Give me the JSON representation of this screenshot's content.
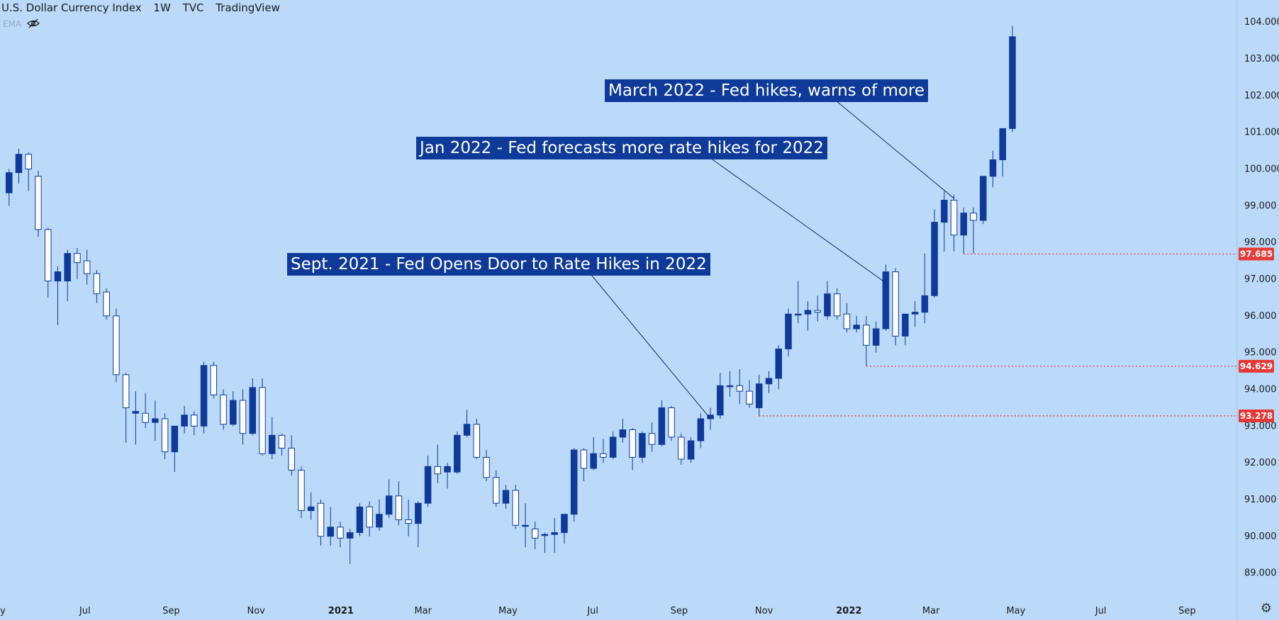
{
  "header": {
    "symbol": "U.S. Dollar Currency Index",
    "interval": "1W",
    "exchange": "TVC",
    "source": "TradingView",
    "indicator": "EMA"
  },
  "annotations": [
    {
      "text": "March 2022 - Fed hikes, warns of more",
      "target_week": "2022-03-14",
      "target_price": 99.2
    },
    {
      "text": "Jan 2022 - Fed forecasts more rate hikes for 2022",
      "target_week": "2022-01-24",
      "target_price": 96.9
    },
    {
      "text": "Sept. 2021 - Fed Opens Door to Rate Hikes in 2022",
      "target_week": "2021-09-20",
      "target_price": 93.2
    }
  ],
  "levels": [
    {
      "price": 97.685,
      "label": "97.685",
      "from_week": "2022-03-21"
    },
    {
      "price": 94.629,
      "label": "94.629",
      "from_week": "2022-01-10"
    },
    {
      "price": 93.278,
      "label": "93.278",
      "from_week": "2021-10-25"
    }
  ],
  "colors": {
    "background": "#bbdafa",
    "up": "#0e3a9a",
    "down": "#ffffff",
    "wick": "#0e3a9a",
    "level": "#e53935",
    "annotation_bg": "#0e3a9a"
  },
  "chart_data": {
    "type": "candlestick",
    "x_axis_labels": [
      {
        "label": "ay",
        "date": "2020-05-01"
      },
      {
        "label": "Jul",
        "date": "2020-07-01"
      },
      {
        "label": "Sep",
        "date": "2020-09-01"
      },
      {
        "label": "Nov",
        "date": "2020-11-01"
      },
      {
        "label": "2021",
        "date": "2021-01-01",
        "bold": true
      },
      {
        "label": "Mar",
        "date": "2021-03-01"
      },
      {
        "label": "May",
        "date": "2021-05-01"
      },
      {
        "label": "Jul",
        "date": "2021-07-01"
      },
      {
        "label": "Sep",
        "date": "2021-09-01"
      },
      {
        "label": "Nov",
        "date": "2021-11-01"
      },
      {
        "label": "2022",
        "date": "2022-01-01",
        "bold": true
      },
      {
        "label": "Mar",
        "date": "2022-03-01"
      },
      {
        "label": "May",
        "date": "2022-05-01"
      },
      {
        "label": "Jul",
        "date": "2022-07-01"
      },
      {
        "label": "Sep",
        "date": "2022-09-01"
      }
    ],
    "y_axis_ticks": [
      "89.000",
      "90.000",
      "91.000",
      "92.000",
      "93.000",
      "94.000",
      "95.000",
      "96.000",
      "97.000",
      "98.000",
      "99.000",
      "100.000",
      "101.000",
      "102.000",
      "103.000",
      "104.000"
    ],
    "ylim": [
      88.3,
      104.6
    ],
    "x_start": "2020-05-01",
    "x_end": "2022-10-07",
    "candles": [
      {
        "t": "2020-05-04",
        "o": 99.35,
        "h": 100.0,
        "l": 99.0,
        "c": 99.9
      },
      {
        "t": "2020-05-11",
        "o": 99.9,
        "h": 100.55,
        "l": 99.6,
        "c": 100.4
      },
      {
        "t": "2020-05-18",
        "o": 100.4,
        "h": 100.45,
        "l": 99.4,
        "c": 100.0
      },
      {
        "t": "2020-05-25",
        "o": 99.8,
        "h": 99.95,
        "l": 98.15,
        "c": 98.35
      },
      {
        "t": "2020-06-01",
        "o": 98.35,
        "h": 98.4,
        "l": 96.5,
        "c": 96.95
      },
      {
        "t": "2020-06-08",
        "o": 96.95,
        "h": 97.35,
        "l": 95.75,
        "c": 97.2
      },
      {
        "t": "2020-06-15",
        "o": 96.95,
        "h": 97.8,
        "l": 96.4,
        "c": 97.7
      },
      {
        "t": "2020-06-22",
        "o": 97.7,
        "h": 97.85,
        "l": 97.0,
        "c": 97.45
      },
      {
        "t": "2020-06-29",
        "o": 97.5,
        "h": 97.8,
        "l": 96.85,
        "c": 97.15
      },
      {
        "t": "2020-07-06",
        "o": 97.15,
        "h": 97.25,
        "l": 96.35,
        "c": 96.6
      },
      {
        "t": "2020-07-13",
        "o": 96.65,
        "h": 96.75,
        "l": 95.9,
        "c": 96.0
      },
      {
        "t": "2020-07-20",
        "o": 96.0,
        "h": 96.2,
        "l": 94.2,
        "c": 94.4
      },
      {
        "t": "2020-07-27",
        "o": 94.4,
        "h": 94.45,
        "l": 92.55,
        "c": 93.5
      },
      {
        "t": "2020-08-03",
        "o": 93.35,
        "h": 93.95,
        "l": 92.5,
        "c": 93.4
      },
      {
        "t": "2020-08-10",
        "o": 93.35,
        "h": 93.9,
        "l": 92.95,
        "c": 93.1
      },
      {
        "t": "2020-08-17",
        "o": 93.1,
        "h": 93.7,
        "l": 92.6,
        "c": 93.2
      },
      {
        "t": "2020-08-24",
        "o": 93.2,
        "h": 93.35,
        "l": 92.1,
        "c": 92.3
      },
      {
        "t": "2020-08-31",
        "o": 92.3,
        "h": 93.0,
        "l": 91.75,
        "c": 93.0
      },
      {
        "t": "2020-09-07",
        "o": 93.0,
        "h": 93.55,
        "l": 92.8,
        "c": 93.3
      },
      {
        "t": "2020-09-14",
        "o": 93.3,
        "h": 93.4,
        "l": 92.75,
        "c": 93.0
      },
      {
        "t": "2020-09-21",
        "o": 93.0,
        "h": 94.75,
        "l": 92.8,
        "c": 94.65
      },
      {
        "t": "2020-09-28",
        "o": 94.65,
        "h": 94.75,
        "l": 93.75,
        "c": 93.85
      },
      {
        "t": "2020-10-05",
        "o": 93.85,
        "h": 94.0,
        "l": 92.9,
        "c": 93.05
      },
      {
        "t": "2020-10-12",
        "o": 93.05,
        "h": 93.95,
        "l": 93.0,
        "c": 93.7
      },
      {
        "t": "2020-10-19",
        "o": 93.7,
        "h": 94.0,
        "l": 92.5,
        "c": 92.8
      },
      {
        "t": "2020-10-26",
        "o": 92.8,
        "h": 94.3,
        "l": 92.75,
        "c": 94.05
      },
      {
        "t": "2020-11-02",
        "o": 94.05,
        "h": 94.3,
        "l": 92.2,
        "c": 92.25
      },
      {
        "t": "2020-11-09",
        "o": 92.25,
        "h": 93.25,
        "l": 92.1,
        "c": 92.75
      },
      {
        "t": "2020-11-16",
        "o": 92.75,
        "h": 92.8,
        "l": 92.2,
        "c": 92.4
      },
      {
        "t": "2020-11-23",
        "o": 92.4,
        "h": 92.75,
        "l": 91.65,
        "c": 91.8
      },
      {
        "t": "2020-11-30",
        "o": 91.8,
        "h": 91.9,
        "l": 90.5,
        "c": 90.7
      },
      {
        "t": "2020-12-07",
        "o": 90.7,
        "h": 91.2,
        "l": 90.45,
        "c": 90.8
      },
      {
        "t": "2020-12-14",
        "o": 90.9,
        "h": 91.0,
        "l": 89.75,
        "c": 90.0
      },
      {
        "t": "2020-12-21",
        "o": 90.0,
        "h": 90.8,
        "l": 89.75,
        "c": 90.25
      },
      {
        "t": "2020-12-28",
        "o": 90.25,
        "h": 90.4,
        "l": 89.7,
        "c": 89.95
      },
      {
        "t": "2021-01-04",
        "o": 89.95,
        "h": 90.2,
        "l": 89.25,
        "c": 90.1
      },
      {
        "t": "2021-01-11",
        "o": 90.1,
        "h": 90.9,
        "l": 90.0,
        "c": 90.8
      },
      {
        "t": "2021-01-18",
        "o": 90.8,
        "h": 90.95,
        "l": 90.0,
        "c": 90.25
      },
      {
        "t": "2021-01-25",
        "o": 90.25,
        "h": 91.0,
        "l": 90.15,
        "c": 90.6
      },
      {
        "t": "2021-02-01",
        "o": 90.6,
        "h": 91.55,
        "l": 90.5,
        "c": 91.1
      },
      {
        "t": "2021-02-08",
        "o": 91.1,
        "h": 91.5,
        "l": 90.3,
        "c": 90.45
      },
      {
        "t": "2021-02-15",
        "o": 90.45,
        "h": 91.0,
        "l": 90.0,
        "c": 90.35
      },
      {
        "t": "2021-02-22",
        "o": 90.35,
        "h": 90.95,
        "l": 89.7,
        "c": 90.9
      },
      {
        "t": "2021-03-01",
        "o": 90.9,
        "h": 92.2,
        "l": 90.8,
        "c": 91.9
      },
      {
        "t": "2021-03-08",
        "o": 91.9,
        "h": 92.5,
        "l": 91.45,
        "c": 91.7
      },
      {
        "t": "2021-03-15",
        "o": 91.75,
        "h": 92.0,
        "l": 91.3,
        "c": 91.9
      },
      {
        "t": "2021-03-22",
        "o": 91.75,
        "h": 92.85,
        "l": 91.7,
        "c": 92.75
      },
      {
        "t": "2021-03-29",
        "o": 92.75,
        "h": 93.45,
        "l": 92.7,
        "c": 93.05
      },
      {
        "t": "2021-04-05",
        "o": 93.05,
        "h": 93.2,
        "l": 92.1,
        "c": 92.15
      },
      {
        "t": "2021-04-12",
        "o": 92.15,
        "h": 92.35,
        "l": 91.5,
        "c": 91.6
      },
      {
        "t": "2021-04-19",
        "o": 91.6,
        "h": 91.8,
        "l": 90.8,
        "c": 90.9
      },
      {
        "t": "2021-04-26",
        "o": 90.9,
        "h": 91.4,
        "l": 90.75,
        "c": 91.25
      },
      {
        "t": "2021-05-03",
        "o": 91.25,
        "h": 91.4,
        "l": 90.2,
        "c": 90.3
      },
      {
        "t": "2021-05-10",
        "o": 90.3,
        "h": 90.9,
        "l": 89.7,
        "c": 90.3
      },
      {
        "t": "2021-05-17",
        "o": 90.2,
        "h": 90.4,
        "l": 89.65,
        "c": 89.95
      },
      {
        "t": "2021-05-24",
        "o": 90.05,
        "h": 90.1,
        "l": 89.55,
        "c": 90.05
      },
      {
        "t": "2021-05-31",
        "o": 90.05,
        "h": 90.5,
        "l": 89.55,
        "c": 90.1
      },
      {
        "t": "2021-06-07",
        "o": 90.1,
        "h": 90.6,
        "l": 89.8,
        "c": 90.6
      },
      {
        "t": "2021-06-14",
        "o": 90.6,
        "h": 92.4,
        "l": 90.4,
        "c": 92.35
      },
      {
        "t": "2021-06-21",
        "o": 92.35,
        "h": 92.4,
        "l": 91.5,
        "c": 91.85
      },
      {
        "t": "2021-06-28",
        "o": 91.85,
        "h": 92.7,
        "l": 91.8,
        "c": 92.25
      },
      {
        "t": "2021-07-05",
        "o": 92.25,
        "h": 92.65,
        "l": 92.0,
        "c": 92.15
      },
      {
        "t": "2021-07-12",
        "o": 92.15,
        "h": 92.85,
        "l": 92.1,
        "c": 92.7
      },
      {
        "t": "2021-07-19",
        "o": 92.7,
        "h": 93.2,
        "l": 92.55,
        "c": 92.9
      },
      {
        "t": "2021-07-26",
        "o": 92.9,
        "h": 92.95,
        "l": 91.8,
        "c": 92.15
      },
      {
        "t": "2021-08-02",
        "o": 92.15,
        "h": 92.85,
        "l": 92.0,
        "c": 92.8
      },
      {
        "t": "2021-08-09",
        "o": 92.8,
        "h": 93.1,
        "l": 92.3,
        "c": 92.5
      },
      {
        "t": "2021-08-16",
        "o": 92.5,
        "h": 93.7,
        "l": 92.45,
        "c": 93.5
      },
      {
        "t": "2021-08-23",
        "o": 93.5,
        "h": 93.55,
        "l": 92.6,
        "c": 92.7
      },
      {
        "t": "2021-08-30",
        "o": 92.7,
        "h": 92.8,
        "l": 91.95,
        "c": 92.1
      },
      {
        "t": "2021-09-06",
        "o": 92.1,
        "h": 92.7,
        "l": 92.0,
        "c": 92.6
      },
      {
        "t": "2021-09-13",
        "o": 92.6,
        "h": 93.35,
        "l": 92.4,
        "c": 93.2
      },
      {
        "t": "2021-09-20",
        "o": 93.2,
        "h": 93.5,
        "l": 92.9,
        "c": 93.3
      },
      {
        "t": "2021-09-27",
        "o": 93.3,
        "h": 94.45,
        "l": 93.2,
        "c": 94.1
      },
      {
        "t": "2021-10-04",
        "o": 94.1,
        "h": 94.5,
        "l": 93.8,
        "c": 94.1
      },
      {
        "t": "2021-10-11",
        "o": 94.1,
        "h": 94.55,
        "l": 93.6,
        "c": 93.95
      },
      {
        "t": "2021-10-18",
        "o": 93.95,
        "h": 94.25,
        "l": 93.5,
        "c": 93.6
      },
      {
        "t": "2021-10-25",
        "o": 93.5,
        "h": 94.4,
        "l": 93.28,
        "c": 94.15
      },
      {
        "t": "2021-11-01",
        "o": 94.15,
        "h": 94.5,
        "l": 93.9,
        "c": 94.3
      },
      {
        "t": "2021-11-08",
        "o": 94.3,
        "h": 95.2,
        "l": 94.0,
        "c": 95.1
      },
      {
        "t": "2021-11-15",
        "o": 95.1,
        "h": 96.2,
        "l": 94.9,
        "c": 96.05
      },
      {
        "t": "2021-11-22",
        "o": 96.05,
        "h": 96.95,
        "l": 95.8,
        "c": 96.05
      },
      {
        "t": "2021-11-29",
        "o": 96.05,
        "h": 96.4,
        "l": 95.6,
        "c": 96.15
      },
      {
        "t": "2021-12-06",
        "o": 96.15,
        "h": 96.55,
        "l": 95.85,
        "c": 96.1
      },
      {
        "t": "2021-12-13",
        "o": 96.0,
        "h": 96.95,
        "l": 95.9,
        "c": 96.6
      },
      {
        "t": "2021-12-20",
        "o": 96.6,
        "h": 96.75,
        "l": 95.9,
        "c": 96.0
      },
      {
        "t": "2021-12-27",
        "o": 96.05,
        "h": 96.35,
        "l": 95.55,
        "c": 95.65
      },
      {
        "t": "2022-01-03",
        "o": 95.65,
        "h": 96.0,
        "l": 95.55,
        "c": 95.75
      },
      {
        "t": "2022-01-10",
        "o": 95.75,
        "h": 96.0,
        "l": 94.63,
        "c": 95.2
      },
      {
        "t": "2022-01-17",
        "o": 95.2,
        "h": 95.85,
        "l": 95.0,
        "c": 95.65
      },
      {
        "t": "2022-01-24",
        "o": 95.65,
        "h": 97.4,
        "l": 95.6,
        "c": 97.2
      },
      {
        "t": "2022-01-31",
        "o": 97.2,
        "h": 97.3,
        "l": 95.2,
        "c": 95.45
      },
      {
        "t": "2022-02-07",
        "o": 95.45,
        "h": 96.0,
        "l": 95.2,
        "c": 96.05
      },
      {
        "t": "2022-02-14",
        "o": 96.05,
        "h": 96.4,
        "l": 95.7,
        "c": 96.1
      },
      {
        "t": "2022-02-21",
        "o": 96.1,
        "h": 97.7,
        "l": 95.8,
        "c": 96.55
      },
      {
        "t": "2022-02-28",
        "o": 96.55,
        "h": 98.9,
        "l": 96.5,
        "c": 98.55
      },
      {
        "t": "2022-03-07",
        "o": 98.55,
        "h": 99.4,
        "l": 97.75,
        "c": 99.15
      },
      {
        "t": "2022-03-14",
        "o": 99.15,
        "h": 99.3,
        "l": 97.75,
        "c": 98.2
      },
      {
        "t": "2022-03-21",
        "o": 98.2,
        "h": 98.95,
        "l": 97.69,
        "c": 98.8
      },
      {
        "t": "2022-03-28",
        "o": 98.8,
        "h": 98.95,
        "l": 97.7,
        "c": 98.6
      },
      {
        "t": "2022-04-04",
        "o": 98.6,
        "h": 99.8,
        "l": 98.5,
        "c": 99.8
      },
      {
        "t": "2022-04-11",
        "o": 99.8,
        "h": 100.5,
        "l": 99.5,
        "c": 100.25
      },
      {
        "t": "2022-04-18",
        "o": 100.25,
        "h": 101.1,
        "l": 99.8,
        "c": 101.1
      },
      {
        "t": "2022-04-25",
        "o": 101.1,
        "h": 103.9,
        "l": 101.0,
        "c": 103.6
      }
    ]
  }
}
